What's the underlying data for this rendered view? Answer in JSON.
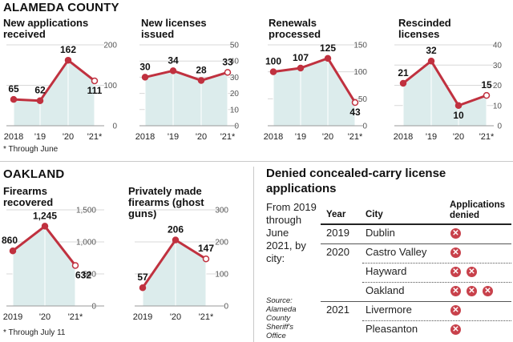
{
  "alameda": {
    "title": "ALAMEDA COUNTY",
    "footnote": "* Through June"
  },
  "oakland": {
    "title": "OAKLAND",
    "footnote": "* Through July 11"
  },
  "colors": {
    "line": "#c0313f",
    "fill": "#dcecec",
    "marker": "#c0313f",
    "grid": "#d8d8d8",
    "x_icon": "#c8414b"
  },
  "chart_data": [
    {
      "id": "new-apps",
      "type": "area",
      "title": "New applications received",
      "categories": [
        "2018",
        "'19",
        "'20",
        "'21*"
      ],
      "values": [
        65,
        62,
        162,
        111
      ],
      "yticks": [
        0,
        100,
        200
      ],
      "ylim": [
        0,
        200
      ],
      "grid": true
    },
    {
      "id": "new-licenses",
      "type": "area",
      "title": "New licenses issued",
      "categories": [
        "2018",
        "'19",
        "'20",
        "'21*"
      ],
      "values": [
        30,
        34,
        28,
        33
      ],
      "yticks": [
        0,
        10,
        20,
        30,
        40,
        50
      ],
      "ylim": [
        0,
        50
      ],
      "grid": true
    },
    {
      "id": "renewals",
      "type": "area",
      "title": "Renewals processed",
      "categories": [
        "2018",
        "'19",
        "'20",
        "'21*"
      ],
      "values": [
        100,
        107,
        125,
        43
      ],
      "yticks": [
        0,
        50,
        100,
        150
      ],
      "ylim": [
        0,
        150
      ],
      "grid": true
    },
    {
      "id": "rescinded",
      "type": "area",
      "title": "Rescinded licenses",
      "categories": [
        "2018",
        "'19",
        "'20",
        "'21*"
      ],
      "values": [
        21,
        32,
        10,
        15
      ],
      "yticks": [
        0,
        10,
        20,
        30,
        40
      ],
      "ylim": [
        0,
        40
      ],
      "grid": true
    },
    {
      "id": "firearms",
      "type": "area",
      "title": "Firearms recovered",
      "categories": [
        "2019",
        "'20",
        "'21*"
      ],
      "values": [
        860,
        1245,
        632
      ],
      "value_labels": [
        "860",
        "1,245",
        "632"
      ],
      "yticks": [
        0,
        500,
        1000,
        1500
      ],
      "ytick_labels": [
        "0",
        "500",
        "1,000",
        "1,500"
      ],
      "ylim": [
        0,
        1500
      ],
      "grid": true
    },
    {
      "id": "ghost",
      "type": "area",
      "title": "Privately made firearms (ghost guns)",
      "categories": [
        "2019",
        "'20",
        "'21*"
      ],
      "values": [
        57,
        206,
        147
      ],
      "yticks": [
        0,
        100,
        200,
        300
      ],
      "ylim": [
        0,
        300
      ],
      "grid": true
    },
    {
      "id": "denied",
      "type": "table",
      "title": "Denied concealed-carry license applications",
      "description": "From 2019 through June 2021, by city:",
      "source": "Source: Alameda County Sheriff's Office",
      "columns": [
        "Year",
        "City",
        "Applications denied"
      ],
      "rows": [
        {
          "year": "2019",
          "city": "Dublin",
          "denied": 1
        },
        {
          "year": "2020",
          "city": "Castro Valley",
          "denied": 1
        },
        {
          "year": "",
          "city": "Hayward",
          "denied": 2
        },
        {
          "year": "",
          "city": "Oakland",
          "denied": 3
        },
        {
          "year": "2021",
          "city": "Livermore",
          "denied": 1
        },
        {
          "year": "",
          "city": "Pleasanton",
          "denied": 1
        }
      ]
    }
  ]
}
